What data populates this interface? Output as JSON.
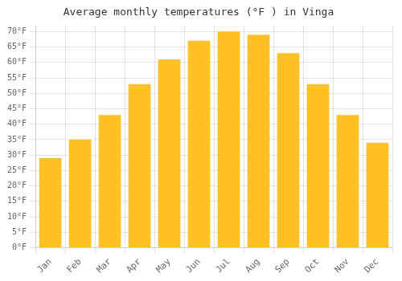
{
  "chart_data": {
    "type": "bar",
    "title": "Average monthly temperatures (°F ) in Vinga",
    "categories": [
      "Jan",
      "Feb",
      "Mar",
      "Apr",
      "May",
      "Jun",
      "Jul",
      "Aug",
      "Sep",
      "Oct",
      "Nov",
      "Dec"
    ],
    "values": [
      29,
      35,
      43,
      53,
      61,
      67,
      70,
      69,
      63,
      53,
      43,
      34
    ],
    "color": "#FFC125",
    "ylim": [
      0,
      72
    ],
    "yticks": [
      {
        "value": 0,
        "label": "0°F"
      },
      {
        "value": 5,
        "label": "5°F"
      },
      {
        "value": 10,
        "label": "10°F"
      },
      {
        "value": 15,
        "label": "15°F"
      },
      {
        "value": 20,
        "label": "20°F"
      },
      {
        "value": 25,
        "label": "25°F"
      },
      {
        "value": 30,
        "label": "30°F"
      },
      {
        "value": 35,
        "label": "35°F"
      },
      {
        "value": 40,
        "label": "40°F"
      },
      {
        "value": 45,
        "label": "45°F"
      },
      {
        "value": 50,
        "label": "50°F"
      },
      {
        "value": 55,
        "label": "55°F"
      },
      {
        "value": 60,
        "label": "60°F"
      },
      {
        "value": 65,
        "label": "65°F"
      },
      {
        "value": 70,
        "label": "70°F"
      }
    ],
    "grid": true
  }
}
